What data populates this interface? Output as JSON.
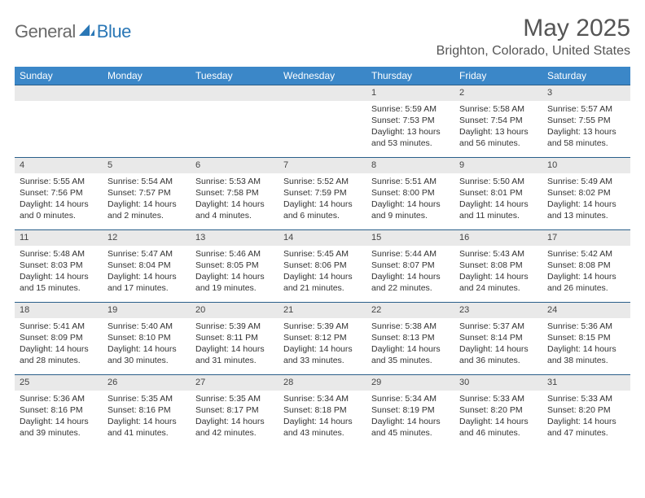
{
  "logo": {
    "general": "General",
    "blue": "Blue"
  },
  "title": "May 2025",
  "location": "Brighton, Colorado, United States",
  "colors": {
    "header_bg": "#3b87c8",
    "header_text": "#ffffff",
    "week_border": "#2a5f8a",
    "daynum_bg": "#e9e9e9",
    "body_text": "#333333",
    "logo_gray": "#6a6a6a",
    "logo_blue": "#2a77b6"
  },
  "typography": {
    "title_fontsize": 30,
    "location_fontsize": 16,
    "dow_fontsize": 12,
    "day_fontsize": 10.5
  },
  "dow": [
    "Sunday",
    "Monday",
    "Tuesday",
    "Wednesday",
    "Thursday",
    "Friday",
    "Saturday"
  ],
  "weeks": [
    [
      {
        "n": "",
        "sr": "",
        "ss": "",
        "dl": ""
      },
      {
        "n": "",
        "sr": "",
        "ss": "",
        "dl": ""
      },
      {
        "n": "",
        "sr": "",
        "ss": "",
        "dl": ""
      },
      {
        "n": "",
        "sr": "",
        "ss": "",
        "dl": ""
      },
      {
        "n": "1",
        "sr": "Sunrise: 5:59 AM",
        "ss": "Sunset: 7:53 PM",
        "dl": "Daylight: 13 hours and 53 minutes."
      },
      {
        "n": "2",
        "sr": "Sunrise: 5:58 AM",
        "ss": "Sunset: 7:54 PM",
        "dl": "Daylight: 13 hours and 56 minutes."
      },
      {
        "n": "3",
        "sr": "Sunrise: 5:57 AM",
        "ss": "Sunset: 7:55 PM",
        "dl": "Daylight: 13 hours and 58 minutes."
      }
    ],
    [
      {
        "n": "4",
        "sr": "Sunrise: 5:55 AM",
        "ss": "Sunset: 7:56 PM",
        "dl": "Daylight: 14 hours and 0 minutes."
      },
      {
        "n": "5",
        "sr": "Sunrise: 5:54 AM",
        "ss": "Sunset: 7:57 PM",
        "dl": "Daylight: 14 hours and 2 minutes."
      },
      {
        "n": "6",
        "sr": "Sunrise: 5:53 AM",
        "ss": "Sunset: 7:58 PM",
        "dl": "Daylight: 14 hours and 4 minutes."
      },
      {
        "n": "7",
        "sr": "Sunrise: 5:52 AM",
        "ss": "Sunset: 7:59 PM",
        "dl": "Daylight: 14 hours and 6 minutes."
      },
      {
        "n": "8",
        "sr": "Sunrise: 5:51 AM",
        "ss": "Sunset: 8:00 PM",
        "dl": "Daylight: 14 hours and 9 minutes."
      },
      {
        "n": "9",
        "sr": "Sunrise: 5:50 AM",
        "ss": "Sunset: 8:01 PM",
        "dl": "Daylight: 14 hours and 11 minutes."
      },
      {
        "n": "10",
        "sr": "Sunrise: 5:49 AM",
        "ss": "Sunset: 8:02 PM",
        "dl": "Daylight: 14 hours and 13 minutes."
      }
    ],
    [
      {
        "n": "11",
        "sr": "Sunrise: 5:48 AM",
        "ss": "Sunset: 8:03 PM",
        "dl": "Daylight: 14 hours and 15 minutes."
      },
      {
        "n": "12",
        "sr": "Sunrise: 5:47 AM",
        "ss": "Sunset: 8:04 PM",
        "dl": "Daylight: 14 hours and 17 minutes."
      },
      {
        "n": "13",
        "sr": "Sunrise: 5:46 AM",
        "ss": "Sunset: 8:05 PM",
        "dl": "Daylight: 14 hours and 19 minutes."
      },
      {
        "n": "14",
        "sr": "Sunrise: 5:45 AM",
        "ss": "Sunset: 8:06 PM",
        "dl": "Daylight: 14 hours and 21 minutes."
      },
      {
        "n": "15",
        "sr": "Sunrise: 5:44 AM",
        "ss": "Sunset: 8:07 PM",
        "dl": "Daylight: 14 hours and 22 minutes."
      },
      {
        "n": "16",
        "sr": "Sunrise: 5:43 AM",
        "ss": "Sunset: 8:08 PM",
        "dl": "Daylight: 14 hours and 24 minutes."
      },
      {
        "n": "17",
        "sr": "Sunrise: 5:42 AM",
        "ss": "Sunset: 8:08 PM",
        "dl": "Daylight: 14 hours and 26 minutes."
      }
    ],
    [
      {
        "n": "18",
        "sr": "Sunrise: 5:41 AM",
        "ss": "Sunset: 8:09 PM",
        "dl": "Daylight: 14 hours and 28 minutes."
      },
      {
        "n": "19",
        "sr": "Sunrise: 5:40 AM",
        "ss": "Sunset: 8:10 PM",
        "dl": "Daylight: 14 hours and 30 minutes."
      },
      {
        "n": "20",
        "sr": "Sunrise: 5:39 AM",
        "ss": "Sunset: 8:11 PM",
        "dl": "Daylight: 14 hours and 31 minutes."
      },
      {
        "n": "21",
        "sr": "Sunrise: 5:39 AM",
        "ss": "Sunset: 8:12 PM",
        "dl": "Daylight: 14 hours and 33 minutes."
      },
      {
        "n": "22",
        "sr": "Sunrise: 5:38 AM",
        "ss": "Sunset: 8:13 PM",
        "dl": "Daylight: 14 hours and 35 minutes."
      },
      {
        "n": "23",
        "sr": "Sunrise: 5:37 AM",
        "ss": "Sunset: 8:14 PM",
        "dl": "Daylight: 14 hours and 36 minutes."
      },
      {
        "n": "24",
        "sr": "Sunrise: 5:36 AM",
        "ss": "Sunset: 8:15 PM",
        "dl": "Daylight: 14 hours and 38 minutes."
      }
    ],
    [
      {
        "n": "25",
        "sr": "Sunrise: 5:36 AM",
        "ss": "Sunset: 8:16 PM",
        "dl": "Daylight: 14 hours and 39 minutes."
      },
      {
        "n": "26",
        "sr": "Sunrise: 5:35 AM",
        "ss": "Sunset: 8:16 PM",
        "dl": "Daylight: 14 hours and 41 minutes."
      },
      {
        "n": "27",
        "sr": "Sunrise: 5:35 AM",
        "ss": "Sunset: 8:17 PM",
        "dl": "Daylight: 14 hours and 42 minutes."
      },
      {
        "n": "28",
        "sr": "Sunrise: 5:34 AM",
        "ss": "Sunset: 8:18 PM",
        "dl": "Daylight: 14 hours and 43 minutes."
      },
      {
        "n": "29",
        "sr": "Sunrise: 5:34 AM",
        "ss": "Sunset: 8:19 PM",
        "dl": "Daylight: 14 hours and 45 minutes."
      },
      {
        "n": "30",
        "sr": "Sunrise: 5:33 AM",
        "ss": "Sunset: 8:20 PM",
        "dl": "Daylight: 14 hours and 46 minutes."
      },
      {
        "n": "31",
        "sr": "Sunrise: 5:33 AM",
        "ss": "Sunset: 8:20 PM",
        "dl": "Daylight: 14 hours and 47 minutes."
      }
    ]
  ]
}
